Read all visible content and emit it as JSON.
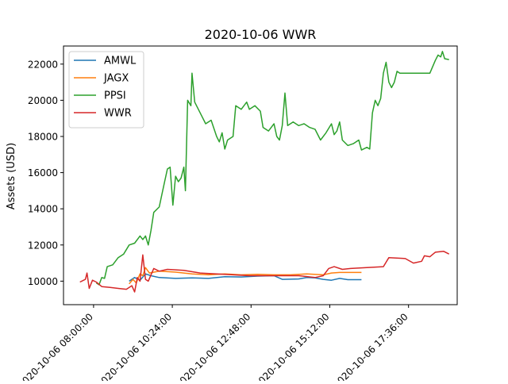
{
  "chart_data": {
    "type": "line",
    "title": "2020-10-06 WWR",
    "xlabel": "",
    "ylabel": "Assets (USD)",
    "xlim": [
      "2020-10-06 07:05",
      "2020-10-06 19:05"
    ],
    "ylim": [
      8700,
      23000
    ],
    "xticks": [
      {
        "t": "2020-10-06 08:00",
        "label": "2020-10-06 08:00:00"
      },
      {
        "t": "2020-10-06 10:24",
        "label": "2020-10-06 10:24:00"
      },
      {
        "t": "2020-10-06 12:48",
        "label": "2020-10-06 12:48:00"
      },
      {
        "t": "2020-10-06 15:12",
        "label": "2020-10-06 15:12:00"
      },
      {
        "t": "2020-10-06 17:36",
        "label": "2020-10-06 17:36:00"
      }
    ],
    "yticks": [
      {
        "v": 10000,
        "label": "10000"
      },
      {
        "v": 12000,
        "label": "12000"
      },
      {
        "v": 14000,
        "label": "14000"
      },
      {
        "v": 16000,
        "label": "16000"
      },
      {
        "v": 18000,
        "label": "18000"
      },
      {
        "v": 20000,
        "label": "20000"
      },
      {
        "v": 22000,
        "label": "22000"
      }
    ],
    "grid": false,
    "legend_position": "top-left",
    "series": [
      {
        "name": "AMWL",
        "color": "#1f77b4",
        "points": [
          [
            "2020-10-06 09:05",
            10000
          ],
          [
            "2020-10-06 09:15",
            10200
          ],
          [
            "2020-10-06 09:25",
            10050
          ],
          [
            "2020-10-06 09:35",
            10400
          ],
          [
            "2020-10-06 09:45",
            10300
          ],
          [
            "2020-10-06 10:00",
            10200
          ],
          [
            "2020-10-06 10:30",
            10150
          ],
          [
            "2020-10-06 11:00",
            10180
          ],
          [
            "2020-10-06 11:30",
            10150
          ],
          [
            "2020-10-06 12:00",
            10250
          ],
          [
            "2020-10-06 12:30",
            10230
          ],
          [
            "2020-10-06 13:00",
            10280
          ],
          [
            "2020-10-06 13:30",
            10300
          ],
          [
            "2020-10-06 13:45",
            10100
          ],
          [
            "2020-10-06 14:15",
            10120
          ],
          [
            "2020-10-06 14:30",
            10200
          ],
          [
            "2020-10-06 14:45",
            10180
          ],
          [
            "2020-10-06 15:00",
            10100
          ],
          [
            "2020-10-06 15:15",
            10050
          ],
          [
            "2020-10-06 15:30",
            10150
          ],
          [
            "2020-10-06 15:45",
            10080
          ],
          [
            "2020-10-06 16:10",
            10080
          ]
        ]
      },
      {
        "name": "JAGX",
        "color": "#ff7f0e",
        "points": [
          [
            "2020-10-06 09:05",
            9850
          ],
          [
            "2020-10-06 09:12",
            10100
          ],
          [
            "2020-10-06 09:18",
            9900
          ],
          [
            "2020-10-06 09:25",
            10400
          ],
          [
            "2020-10-06 09:30",
            10300
          ],
          [
            "2020-10-06 09:35",
            10750
          ],
          [
            "2020-10-06 09:42",
            10450
          ],
          [
            "2020-10-06 10:00",
            10550
          ],
          [
            "2020-10-06 10:30",
            10500
          ],
          [
            "2020-10-06 11:00",
            10400
          ],
          [
            "2020-10-06 11:30",
            10350
          ],
          [
            "2020-10-06 12:00",
            10400
          ],
          [
            "2020-10-06 12:30",
            10350
          ],
          [
            "2020-10-06 13:00",
            10380
          ],
          [
            "2020-10-06 13:30",
            10350
          ],
          [
            "2020-10-06 14:00",
            10350
          ],
          [
            "2020-10-06 14:30",
            10400
          ],
          [
            "2020-10-06 15:00",
            10350
          ],
          [
            "2020-10-06 15:15",
            10450
          ],
          [
            "2020-10-06 15:30",
            10480
          ],
          [
            "2020-10-06 16:10",
            10480
          ]
        ]
      },
      {
        "name": "PPSI",
        "color": "#2ca02c",
        "points": [
          [
            "2020-10-06 08:05",
            9900
          ],
          [
            "2020-10-06 08:10",
            9800
          ],
          [
            "2020-10-06 08:15",
            10200
          ],
          [
            "2020-10-06 08:20",
            10150
          ],
          [
            "2020-10-06 08:25",
            10800
          ],
          [
            "2020-10-06 08:35",
            10900
          ],
          [
            "2020-10-06 08:45",
            11300
          ],
          [
            "2020-10-06 08:55",
            11500
          ],
          [
            "2020-10-06 09:05",
            12000
          ],
          [
            "2020-10-06 09:15",
            12100
          ],
          [
            "2020-10-06 09:25",
            12500
          ],
          [
            "2020-10-06 09:30",
            12300
          ],
          [
            "2020-10-06 09:35",
            12500
          ],
          [
            "2020-10-06 09:40",
            12000
          ],
          [
            "2020-10-06 09:45",
            12800
          ],
          [
            "2020-10-06 09:50",
            13800
          ],
          [
            "2020-10-06 10:00",
            14100
          ],
          [
            "2020-10-06 10:05",
            14800
          ],
          [
            "2020-10-06 10:10",
            15500
          ],
          [
            "2020-10-06 10:15",
            16200
          ],
          [
            "2020-10-06 10:20",
            16300
          ],
          [
            "2020-10-06 10:25",
            14200
          ],
          [
            "2020-10-06 10:30",
            15800
          ],
          [
            "2020-10-06 10:35",
            15500
          ],
          [
            "2020-10-06 10:40",
            15700
          ],
          [
            "2020-10-06 10:45",
            16300
          ],
          [
            "2020-10-06 10:48",
            15000
          ],
          [
            "2020-10-06 10:52",
            20000
          ],
          [
            "2020-10-06 10:58",
            19700
          ],
          [
            "2020-10-06 11:00",
            21500
          ],
          [
            "2020-10-06 11:05",
            19900
          ],
          [
            "2020-10-06 11:15",
            19300
          ],
          [
            "2020-10-06 11:25",
            18700
          ],
          [
            "2020-10-06 11:35",
            18900
          ],
          [
            "2020-10-06 11:45",
            18000
          ],
          [
            "2020-10-06 11:50",
            17700
          ],
          [
            "2020-10-06 11:55",
            18200
          ],
          [
            "2020-10-06 12:00",
            17300
          ],
          [
            "2020-10-06 12:05",
            17800
          ],
          [
            "2020-10-06 12:15",
            18000
          ],
          [
            "2020-10-06 12:20",
            19700
          ],
          [
            "2020-10-06 12:30",
            19500
          ],
          [
            "2020-10-06 12:40",
            19900
          ],
          [
            "2020-10-06 12:45",
            19500
          ],
          [
            "2020-10-06 12:55",
            19700
          ],
          [
            "2020-10-06 13:05",
            19400
          ],
          [
            "2020-10-06 13:10",
            18500
          ],
          [
            "2020-10-06 13:20",
            18300
          ],
          [
            "2020-10-06 13:30",
            18700
          ],
          [
            "2020-10-06 13:35",
            18000
          ],
          [
            "2020-10-06 13:40",
            17800
          ],
          [
            "2020-10-06 13:45",
            18600
          ],
          [
            "2020-10-06 13:50",
            20400
          ],
          [
            "2020-10-06 13:55",
            18600
          ],
          [
            "2020-10-06 14:05",
            18800
          ],
          [
            "2020-10-06 14:15",
            18600
          ],
          [
            "2020-10-06 14:25",
            18700
          ],
          [
            "2020-10-06 14:35",
            18500
          ],
          [
            "2020-10-06 14:45",
            18400
          ],
          [
            "2020-10-06 14:55",
            17800
          ],
          [
            "2020-10-06 15:05",
            18200
          ],
          [
            "2020-10-06 15:15",
            18700
          ],
          [
            "2020-10-06 15:20",
            18100
          ],
          [
            "2020-10-06 15:25",
            18300
          ],
          [
            "2020-10-06 15:30",
            18800
          ],
          [
            "2020-10-06 15:35",
            17800
          ],
          [
            "2020-10-06 15:45",
            17500
          ],
          [
            "2020-10-06 15:55",
            17600
          ],
          [
            "2020-10-06 16:05",
            17800
          ],
          [
            "2020-10-06 16:10",
            17250
          ],
          [
            "2020-10-06 16:20",
            17400
          ],
          [
            "2020-10-06 16:25",
            17300
          ],
          [
            "2020-10-06 16:30",
            19300
          ],
          [
            "2020-10-06 16:35",
            20000
          ],
          [
            "2020-10-06 16:40",
            19700
          ],
          [
            "2020-10-06 16:45",
            20100
          ],
          [
            "2020-10-06 16:50",
            21500
          ],
          [
            "2020-10-06 16:55",
            22100
          ],
          [
            "2020-10-06 17:00",
            21000
          ],
          [
            "2020-10-06 17:05",
            20700
          ],
          [
            "2020-10-06 17:10",
            21000
          ],
          [
            "2020-10-06 17:15",
            21600
          ],
          [
            "2020-10-06 17:20",
            21500
          ],
          [
            "2020-10-06 17:45",
            21500
          ],
          [
            "2020-10-06 18:15",
            21500
          ],
          [
            "2020-10-06 18:25",
            22200
          ],
          [
            "2020-10-06 18:30",
            22500
          ],
          [
            "2020-10-06 18:35",
            22400
          ],
          [
            "2020-10-06 18:38",
            22700
          ],
          [
            "2020-10-06 18:42",
            22300
          ],
          [
            "2020-10-06 18:50",
            22250
          ]
        ]
      },
      {
        "name": "WWR",
        "color": "#d62728",
        "points": [
          [
            "2020-10-06 07:35",
            9950
          ],
          [
            "2020-10-06 07:45",
            10100
          ],
          [
            "2020-10-06 07:48",
            10450
          ],
          [
            "2020-10-06 07:52",
            9600
          ],
          [
            "2020-10-06 07:58",
            10050
          ],
          [
            "2020-10-06 08:05",
            9950
          ],
          [
            "2020-10-06 08:15",
            9700
          ],
          [
            "2020-10-06 08:30",
            9650
          ],
          [
            "2020-10-06 08:45",
            9600
          ],
          [
            "2020-10-06 09:00",
            9550
          ],
          [
            "2020-10-06 09:10",
            9750
          ],
          [
            "2020-10-06 09:15",
            9400
          ],
          [
            "2020-10-06 09:20",
            10200
          ],
          [
            "2020-10-06 09:25",
            10000
          ],
          [
            "2020-10-06 09:30",
            11450
          ],
          [
            "2020-10-06 09:35",
            10100
          ],
          [
            "2020-10-06 09:40",
            10000
          ],
          [
            "2020-10-06 09:50",
            10700
          ],
          [
            "2020-10-06 10:00",
            10550
          ],
          [
            "2020-10-06 10:15",
            10650
          ],
          [
            "2020-10-06 10:45",
            10600
          ],
          [
            "2020-10-06 11:15",
            10450
          ],
          [
            "2020-10-06 11:45",
            10400
          ],
          [
            "2020-10-06 12:15",
            10350
          ],
          [
            "2020-10-06 12:45",
            10300
          ],
          [
            "2020-10-06 13:15",
            10300
          ],
          [
            "2020-10-06 13:45",
            10300
          ],
          [
            "2020-10-06 14:15",
            10300
          ],
          [
            "2020-10-06 14:45",
            10200
          ],
          [
            "2020-10-06 15:00",
            10300
          ],
          [
            "2020-10-06 15:10",
            10700
          ],
          [
            "2020-10-06 15:20",
            10800
          ],
          [
            "2020-10-06 15:35",
            10650
          ],
          [
            "2020-10-06 15:50",
            10700
          ],
          [
            "2020-10-06 16:20",
            10750
          ],
          [
            "2020-10-06 16:50",
            10800
          ],
          [
            "2020-10-06 17:00",
            11300
          ],
          [
            "2020-10-06 17:30",
            11250
          ],
          [
            "2020-10-06 17:45",
            11000
          ],
          [
            "2020-10-06 18:00",
            11100
          ],
          [
            "2020-10-06 18:05",
            11400
          ],
          [
            "2020-10-06 18:15",
            11350
          ],
          [
            "2020-10-06 18:25",
            11600
          ],
          [
            "2020-10-06 18:40",
            11650
          ],
          [
            "2020-10-06 18:50",
            11500
          ]
        ]
      }
    ]
  }
}
